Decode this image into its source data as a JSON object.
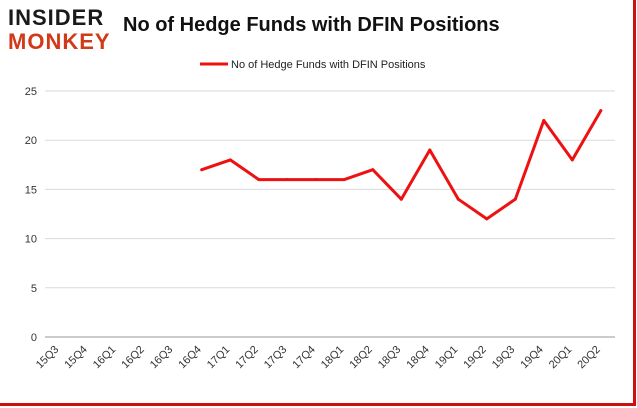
{
  "logo": {
    "top": "INSIDER",
    "bottom": "MONKEY"
  },
  "chart_data": {
    "type": "line",
    "title": "No of Hedge Funds with DFIN Positions",
    "xlabel": "",
    "ylabel": "",
    "categories": [
      "15Q3",
      "15Q4",
      "16Q1",
      "16Q2",
      "16Q3",
      "16Q4",
      "17Q1",
      "17Q2",
      "17Q3",
      "17Q4",
      "18Q1",
      "18Q2",
      "18Q3",
      "18Q4",
      "19Q1",
      "19Q2",
      "19Q3",
      "19Q4",
      "20Q1",
      "20Q2"
    ],
    "series": [
      {
        "name": "No of Hedge Funds with DFIN Positions",
        "color": "#ee1111",
        "values": [
          null,
          null,
          null,
          null,
          null,
          17,
          18,
          16,
          16,
          16,
          16,
          17,
          14,
          19,
          14,
          12,
          14,
          22,
          18,
          23
        ]
      }
    ],
    "ylim": [
      0,
      25
    ],
    "yticks": [
      0,
      5,
      10,
      15,
      20,
      25
    ],
    "grid": true,
    "legend_position": "top"
  }
}
